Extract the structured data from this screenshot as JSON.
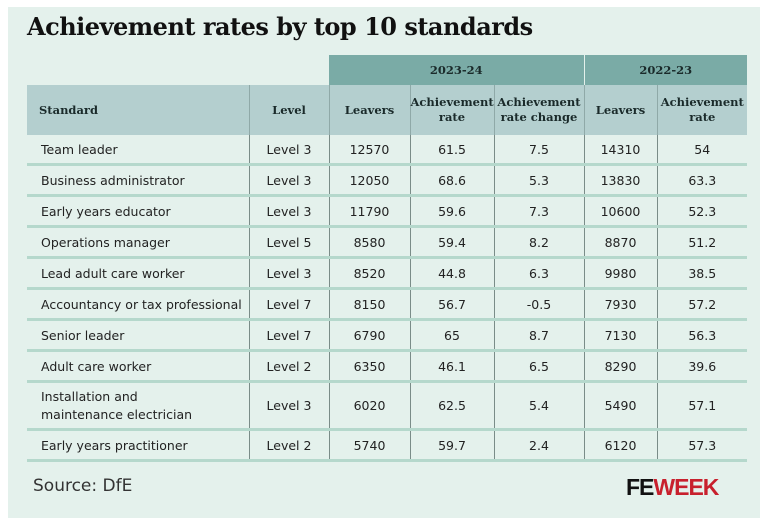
{
  "title": "Achievement rates by top 10 standards",
  "source": "Source: DfE",
  "logo": {
    "fe": "FE",
    "week": "WEEK",
    "colors": {
      "fe": "#111111",
      "week": "#c8202d"
    }
  },
  "colors": {
    "band": "#7aaba6",
    "header": "#b4cfcf",
    "background": "#e4f1ec",
    "row_divider": "#b5d8cc"
  },
  "chart_data": {
    "type": "table",
    "groups": [
      "2023-24",
      "2022-23"
    ],
    "columns": [
      "Standard",
      "Level",
      "Leavers",
      "Achievement rate",
      "Achievement rate change",
      "Leavers",
      "Achievement rate"
    ],
    "rows": [
      [
        "Team leader",
        "Level 3",
        "12570",
        "61.5",
        "7.5",
        "14310",
        "54"
      ],
      [
        "Business administrator",
        "Level 3",
        "12050",
        "68.6",
        "5.3",
        "13830",
        "63.3"
      ],
      [
        "Early years educator",
        "Level 3",
        "11790",
        "59.6",
        "7.3",
        "10600",
        "52.3"
      ],
      [
        "Operations manager",
        "Level 5",
        "8580",
        "59.4",
        "8.2",
        "8870",
        "51.2"
      ],
      [
        "Lead adult care worker",
        "Level 3",
        "8520",
        "44.8",
        "6.3",
        "9980",
        "38.5"
      ],
      [
        "Accountancy or tax professional",
        "Level 7",
        "8150",
        "56.7",
        "-0.5",
        "7930",
        "57.2"
      ],
      [
        "Senior leader",
        "Level 7",
        "6790",
        "65",
        "8.7",
        "7130",
        "56.3"
      ],
      [
        "Adult care worker",
        "Level 2",
        "6350",
        "46.1",
        "6.5",
        "8290",
        "39.6"
      ],
      [
        "Installation and maintenance electrician",
        "Level 3",
        "6020",
        "62.5",
        "5.4",
        "5490",
        "57.1"
      ],
      [
        "Early years practitioner",
        "Level 2",
        "5740",
        "59.7",
        "2.4",
        "6120",
        "57.3"
      ]
    ]
  }
}
